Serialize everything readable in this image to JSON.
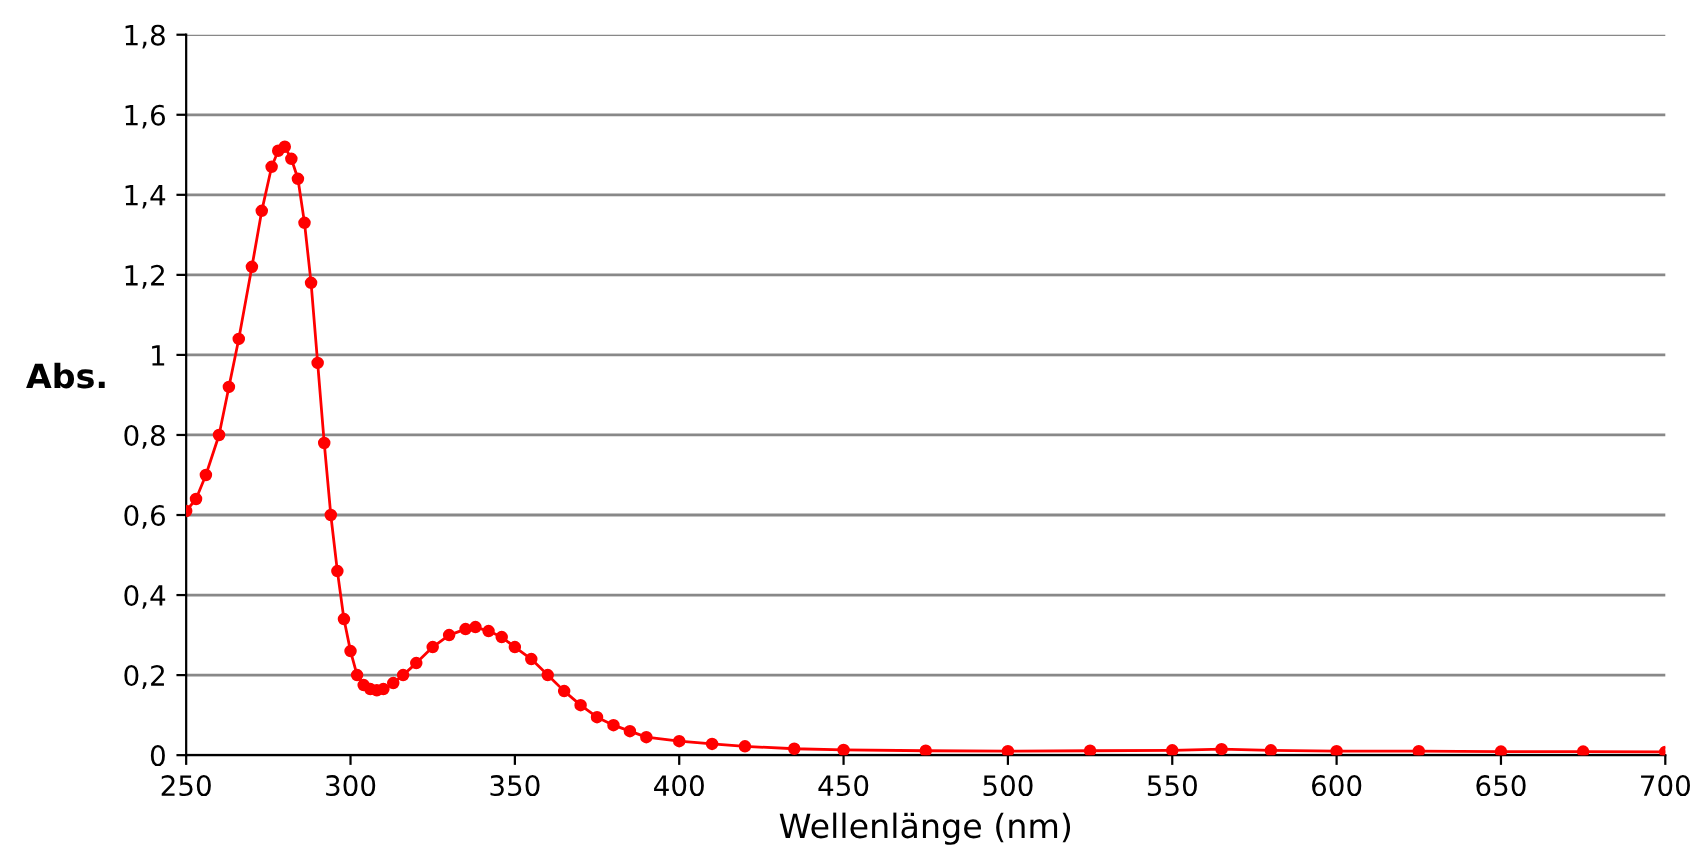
{
  "chart_data": {
    "type": "line",
    "xlabel": "Wellenlänge (nm)",
    "ylabel": "Abs.",
    "x": [
      250,
      253,
      256,
      260,
      263,
      266,
      270,
      273,
      276,
      278,
      280,
      282,
      284,
      286,
      288,
      290,
      292,
      294,
      296,
      298,
      300,
      302,
      304,
      306,
      308,
      310,
      313,
      316,
      320,
      325,
      330,
      335,
      338,
      342,
      346,
      350,
      355,
      360,
      365,
      370,
      375,
      380,
      385,
      390,
      400,
      410,
      420,
      435,
      450,
      475,
      500,
      525,
      550,
      565,
      580,
      600,
      625,
      650,
      675,
      700
    ],
    "series": [
      {
        "color": "#ff0000",
        "values": [
          0.61,
          0.64,
          0.7,
          0.8,
          0.92,
          1.04,
          1.22,
          1.36,
          1.47,
          1.51,
          1.52,
          1.49,
          1.44,
          1.33,
          1.18,
          0.98,
          0.78,
          0.6,
          0.46,
          0.34,
          0.26,
          0.2,
          0.175,
          0.165,
          0.162,
          0.165,
          0.18,
          0.2,
          0.23,
          0.27,
          0.3,
          0.315,
          0.32,
          0.31,
          0.295,
          0.27,
          0.24,
          0.2,
          0.16,
          0.125,
          0.095,
          0.075,
          0.06,
          0.045,
          0.035,
          0.028,
          0.022,
          0.016,
          0.013,
          0.011,
          0.01,
          0.011,
          0.012,
          0.015,
          0.012,
          0.01,
          0.01,
          0.009,
          0.009,
          0.008
        ]
      }
    ],
    "xlim": [
      250,
      700
    ],
    "xticks": [
      250,
      300,
      350,
      400,
      450,
      500,
      550,
      600,
      650,
      700
    ],
    "ylim": [
      0,
      1.8
    ],
    "yticks": [
      0,
      {
        "value": 0.2,
        "label": "0,2"
      },
      {
        "value": 0.4,
        "label": "0,4"
      },
      {
        "value": 0.6,
        "label": "0,6"
      },
      {
        "value": 0.8,
        "label": "0,8"
      },
      1,
      {
        "value": 1.2,
        "label": "1,2"
      },
      {
        "value": 1.4,
        "label": "1,4"
      },
      {
        "value": 1.6,
        "label": "1,6"
      },
      {
        "value": 1.8,
        "label": "1,8"
      }
    ],
    "grid": "y",
    "marker": "circle",
    "line_style": "solid"
  }
}
